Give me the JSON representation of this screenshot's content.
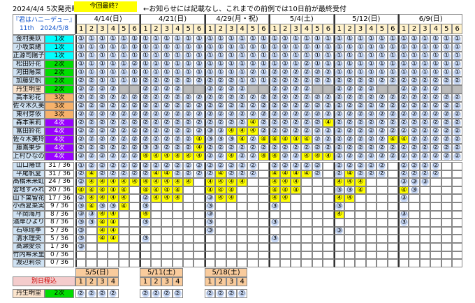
{
  "header": {
    "sale": "2024/4/4 5次発売時",
    "badge": "今回最終？",
    "note": "←お知らせには記載なし、これまでの前例では10日前が最終受付"
  },
  "event": {
    "title": "『君はハニーデュー』",
    "subtitle": "11th　2024/5/8"
  },
  "dates": [
    "4/14(日)",
    "4/21(日)",
    "4/29(月・祝)",
    "5/4(土)",
    "5/12(日)",
    "6/9(日)"
  ],
  "slots": [
    "1",
    "2",
    "3",
    "4",
    "5",
    "6"
  ],
  "members": [
    {
      "name": "金村美玖",
      "batch": "1次",
      "batch_color": "#00ffff",
      "cells": [
        "①",
        "①",
        "①",
        "①",
        "①",
        "①",
        "①",
        "①",
        "①",
        "①",
        "①",
        "①",
        "①",
        "①",
        "①",
        "①",
        "①",
        "①",
        "①",
        "①",
        "①",
        "①",
        "①",
        "①",
        "①",
        "①",
        "①",
        "①",
        "①",
        "①",
        "①",
        "①",
        "①",
        "①",
        "①",
        "①"
      ]
    },
    {
      "name": "小坂菜緒",
      "batch": "1次",
      "batch_color": "#00ffff",
      "cells": [
        "①",
        "①",
        "①",
        "①",
        "①",
        "①",
        "①",
        "①",
        "①",
        "①",
        "①",
        "①",
        "①",
        "①",
        "①",
        "①",
        "①",
        "①",
        "①",
        "①",
        "①",
        "①",
        "①",
        "①",
        "①",
        "①",
        "①",
        "①",
        "①",
        "①",
        "①",
        "①",
        "①",
        "①",
        "①",
        "①"
      ]
    },
    {
      "name": "正源司陽子",
      "batch": "1次",
      "batch_color": "#00ffff",
      "cells": [
        "①",
        "①",
        "①",
        "①",
        "①",
        "①",
        "①",
        "①",
        "①",
        "①",
        "①",
        "①",
        "①",
        "①",
        "①",
        "①",
        "①",
        "①",
        "①",
        "①",
        "①",
        "①",
        "①",
        "①",
        "①",
        "①",
        "①",
        "①",
        "①",
        "①",
        "①",
        "①",
        "①",
        "①",
        "①",
        "①"
      ]
    },
    {
      "name": "松田好花",
      "batch": "2次",
      "batch_color": "#00dd00",
      "cells": [
        "①",
        "①",
        "①",
        "①",
        "①",
        "②",
        "①",
        "①",
        "①",
        "①",
        "①",
        "①",
        "①",
        "①",
        "①",
        "①",
        "①",
        "①",
        "①",
        "①",
        "①",
        "②",
        "①",
        "①",
        "①",
        "①",
        "①",
        "①",
        "①",
        "①",
        "①",
        "①",
        "①",
        "①",
        "①",
        "①"
      ]
    },
    {
      "name": "河田陽菜",
      "batch": "2次",
      "batch_color": "#00dd00",
      "cells": [
        "①",
        "①",
        "①",
        "①",
        "①",
        "①",
        "①",
        "①",
        "①",
        "①",
        "①",
        "①",
        "①",
        "①",
        "①",
        "①",
        "②",
        "①",
        "②",
        "②",
        "②",
        "②",
        "②",
        "②",
        "①",
        "①",
        "①",
        "①",
        "①",
        "①",
        "①",
        "①",
        "①",
        "①",
        "①",
        "①"
      ]
    },
    {
      "name": "加藤史帆",
      "batch": "2次",
      "batch_color": "#00dd00",
      "cells": [
        "②",
        "②",
        "①",
        "①",
        "①",
        "①",
        "②",
        "②",
        "②",
        "②",
        "②",
        "②",
        "②",
        "②",
        "②",
        "①",
        "①",
        "①",
        "②",
        "②",
        "②",
        "②",
        "②",
        "②",
        "②",
        "②",
        "②",
        "②",
        "②",
        "②",
        "②",
        "②",
        "②",
        "②",
        "②",
        "②"
      ]
    },
    {
      "name": "丹生明里",
      "batch": "2次",
      "batch_color": "#00dd00",
      "name_color": "#fce5cd",
      "blocked": [
        4,
        5,
        10,
        11,
        16,
        17,
        22,
        23,
        28,
        29,
        34,
        35
      ],
      "cells": [
        "②",
        "②",
        "②",
        "②",
        null,
        null,
        "②",
        "②",
        "②",
        "②",
        null,
        null,
        "②",
        "②",
        "②",
        "②",
        null,
        null,
        "②",
        "②",
        "②",
        "②",
        null,
        null,
        "②",
        "②",
        "②",
        "②",
        null,
        null,
        "②",
        "②",
        "②",
        "②",
        null,
        null
      ]
    },
    {
      "name": "高本彩花",
      "batch": "3次",
      "batch_color": "#f6b26b",
      "cells": [
        "②",
        "②",
        "②",
        "②",
        "②",
        "②",
        "②",
        "②",
        "②",
        "②",
        "②",
        "②",
        "②",
        "②",
        "②",
        "②",
        "②",
        "②",
        "②",
        "②",
        "②",
        "②",
        "②",
        "②",
        "②",
        "②",
        "②",
        "②",
        "②",
        "②",
        "②",
        "②",
        "②",
        "②",
        "②",
        "②"
      ]
    },
    {
      "name": "佐々木久美",
      "batch": "3次",
      "batch_color": "#f6b26b",
      "cells": [
        "②",
        "②",
        "②",
        "②",
        "②",
        "②",
        "②",
        "②",
        "②",
        "②",
        "②",
        "②",
        "②",
        "②",
        "②",
        "②",
        "②",
        "②",
        "②",
        "②",
        "②",
        "②",
        "②",
        "②",
        "②",
        "②",
        "②",
        "②",
        "②",
        "②",
        "②",
        "②",
        "②",
        "②",
        "②",
        "②"
      ]
    },
    {
      "name": "東村芽依",
      "batch": "3次",
      "batch_color": "#f6b26b",
      "cells": [
        "②",
        "②",
        "②",
        "②",
        "②",
        "②",
        "②",
        "②",
        "②",
        "②",
        "②",
        "②",
        "②",
        "②",
        "②",
        "②",
        "②",
        "②",
        "②",
        "②",
        "②",
        "②",
        "②",
        "②",
        "②",
        "②",
        "②",
        "②",
        "②",
        "②",
        "②",
        "②",
        "②",
        "②",
        "②",
        "②"
      ]
    },
    {
      "name": "森本茉莉",
      "batch": "4次",
      "batch_color": "#9900ff",
      "cells": [
        "②",
        "②",
        "②",
        "②",
        "②",
        "②",
        "②",
        "②",
        "②",
        "②",
        "②",
        "②",
        "②",
        "②",
        "②",
        "②",
        "④",
        "②",
        "②",
        "②",
        "②",
        "②",
        "②",
        "④",
        "②",
        "②",
        "②",
        "②",
        "②",
        "②",
        "②",
        "②",
        "②",
        "②",
        "②",
        "②"
      ]
    },
    {
      "name": "富田鈴花",
      "batch": "4次",
      "batch_color": "#9900ff",
      "cells": [
        "②",
        "②",
        "②",
        "②",
        "②",
        "②",
        "②",
        "②",
        "②",
        "②",
        "②",
        "②",
        "③",
        "③",
        "④",
        "④",
        "④",
        "②",
        "②",
        "②",
        "②",
        "②",
        "②",
        "②",
        "②",
        "②",
        "②",
        "②",
        "②",
        "②",
        "②",
        "②",
        "②",
        "②",
        "②",
        "②"
      ]
    },
    {
      "name": "佐々木美玲",
      "batch": "4次",
      "batch_color": "#9900ff",
      "cells": [
        "②",
        "②",
        "②",
        "②",
        "②",
        "②",
        "②",
        "②",
        "②",
        "②",
        "②",
        "④",
        "③",
        "③",
        "③",
        "④",
        "②",
        "④",
        "④",
        "④",
        "④",
        "④",
        "②",
        "②",
        "②",
        "②",
        "②",
        "②",
        "②",
        "④",
        "④",
        "②",
        "②",
        "②",
        "②",
        "②"
      ]
    },
    {
      "name": "藤嶌果歩",
      "batch": "4次",
      "batch_color": "#9900ff",
      "cells": [
        "②",
        "②",
        "②",
        "②",
        "②",
        "②",
        "③",
        "③",
        "②",
        "②",
        "②",
        "④",
        "②",
        "②",
        "②",
        "②",
        "②",
        "②",
        "②",
        "②",
        "②",
        "②",
        "②",
        "②",
        "②",
        "②",
        "②",
        "②",
        "②",
        "②",
        "②",
        "②",
        "②",
        "②",
        "②",
        "②"
      ]
    },
    {
      "name": "上村ひなの",
      "batch": "4次",
      "batch_color": "#9900ff",
      "cells": [
        "②",
        "②",
        "②",
        "②",
        "②",
        "②",
        "④",
        "④",
        "④",
        "④",
        "④",
        "④",
        "②",
        "②",
        "④",
        "②",
        "②",
        "④",
        "④",
        "②",
        "②",
        "④",
        "④",
        "④",
        "②",
        "②",
        "②",
        "②",
        "②",
        "②",
        "②",
        "②",
        "②",
        "②",
        "②",
        "②"
      ]
    }
  ],
  "sales": [
    {
      "name": "山口陽世",
      "count": "31 / 36",
      "cells": [
        "①",
        "②",
        "②",
        "②",
        "②",
        "②",
        "②",
        "②",
        "②",
        "②",
        "②",
        "②",
        "②",
        "②",
        "②",
        "②",
        "②",
        null,
        "②",
        "②",
        "②",
        "②",
        "②",
        null,
        "②",
        "②",
        "②",
        "②",
        "②",
        null,
        "②",
        "②",
        "②",
        "②",
        null,
        null
      ]
    },
    {
      "name": "平尾帆夏",
      "count": "31 / 36",
      "cells": [
        "②",
        "④",
        "②",
        "②",
        "②",
        "②",
        "②",
        "④",
        "④",
        "②",
        "②",
        "②",
        "②",
        "④",
        "②",
        "②",
        "②",
        null,
        "④",
        "④",
        "④",
        "④",
        "②",
        null,
        "②",
        "④",
        "②",
        "②",
        "②",
        null,
        "②",
        "②",
        "②",
        "②",
        null,
        null
      ]
    },
    {
      "name": "髙橋未来虹",
      "count": "24 / 36",
      "cells": [
        "②",
        "④",
        "④",
        "④",
        "④",
        "④",
        "④",
        "④",
        "④",
        "④",
        "④",
        null,
        "④",
        "④",
        "④",
        "④",
        null,
        null,
        "④",
        "④",
        "④",
        null,
        null,
        null,
        "④",
        "④",
        "④",
        null,
        null,
        null,
        "③",
        "③",
        "③",
        null,
        null,
        null
      ]
    },
    {
      "name": "宮地すみれ",
      "count": "20 / 36",
      "cells": [
        "④",
        "④",
        "④",
        "④",
        "④",
        null,
        "④",
        "④",
        "④",
        "④",
        null,
        null,
        "④",
        "④",
        "④",
        null,
        null,
        null,
        "④",
        "④",
        "④",
        null,
        null,
        null,
        "③",
        "③",
        "④",
        null,
        null,
        null,
        "④",
        "③",
        null,
        null,
        null,
        null
      ]
    },
    {
      "name": "山下葉留花",
      "count": "17 / 36",
      "cells": [
        "②",
        "④",
        "④",
        "④",
        "④",
        null,
        "②",
        "④",
        "④",
        "④",
        null,
        null,
        "③",
        "④",
        "④",
        null,
        null,
        null,
        "④",
        "④",
        null,
        null,
        null,
        null,
        "④",
        "④",
        null,
        null,
        null,
        null,
        "③",
        null,
        null,
        null,
        null,
        null
      ]
    },
    {
      "name": "小西夏菜実",
      "count": "9 / 36",
      "cells": [
        "③",
        "④",
        "③",
        "③",
        "④",
        null,
        "③",
        null,
        null,
        null,
        null,
        null,
        "③",
        null,
        null,
        null,
        null,
        null,
        "③",
        null,
        null,
        null,
        null,
        null,
        "③",
        null,
        null,
        null,
        null,
        null,
        null,
        null,
        null,
        null,
        null,
        null
      ]
    },
    {
      "name": "平岡海月",
      "count": "8 / 36",
      "cells": [
        "③",
        "③",
        "④",
        "④",
        null,
        null,
        "④",
        null,
        null,
        null,
        null,
        null,
        "③",
        null,
        null,
        null,
        null,
        null,
        null,
        null,
        null,
        null,
        null,
        null,
        "④",
        null,
        null,
        null,
        null,
        null,
        "③",
        null,
        null,
        null,
        null,
        null
      ]
    },
    {
      "name": "濱岸ひより",
      "count": "8 / 36",
      "cells": [
        "③",
        "③",
        "④",
        "④",
        null,
        null,
        "③",
        null,
        null,
        null,
        null,
        null,
        "③",
        null,
        null,
        null,
        null,
        null,
        "③",
        null,
        null,
        null,
        null,
        null,
        null,
        null,
        null,
        null,
        null,
        null,
        "③",
        null,
        null,
        null,
        null,
        null
      ]
    },
    {
      "name": "石塚瑶季",
      "count": "5 / 36",
      "cells": [
        "③",
        null,
        "④",
        "④",
        null,
        null,
        null,
        null,
        null,
        null,
        null,
        null,
        "③",
        null,
        null,
        null,
        null,
        null,
        null,
        null,
        null,
        null,
        null,
        null,
        "③",
        null,
        null,
        null,
        null,
        null,
        null,
        null,
        null,
        null,
        null,
        null
      ]
    },
    {
      "name": "清水理央",
      "count": "5 / 36",
      "cells": [
        "③",
        null,
        "④",
        "④",
        null,
        null,
        "③",
        null,
        null,
        null,
        null,
        null,
        null,
        null,
        null,
        null,
        null,
        null,
        "③",
        null,
        null,
        null,
        null,
        null,
        null,
        null,
        null,
        null,
        null,
        null,
        null,
        null,
        null,
        null,
        null,
        null
      ]
    },
    {
      "name": "髙瀬愛奈",
      "count": "1 / 36",
      "cells": [
        "③",
        null,
        null,
        null,
        null,
        null,
        null,
        null,
        null,
        null,
        null,
        null,
        null,
        null,
        null,
        null,
        null,
        null,
        null,
        null,
        null,
        null,
        null,
        null,
        null,
        null,
        null,
        null,
        null,
        null,
        null,
        null,
        null,
        null,
        null,
        null
      ]
    },
    {
      "name": "竹内希来里",
      "count": "0 / 36",
      "cells": [
        null,
        null,
        null,
        null,
        null,
        null,
        null,
        null,
        null,
        null,
        null,
        null,
        null,
        null,
        null,
        null,
        null,
        null,
        null,
        null,
        null,
        null,
        null,
        null,
        null,
        null,
        null,
        null,
        null,
        null,
        null,
        null,
        null,
        null,
        null,
        null
      ]
    },
    {
      "name": "渡辺莉奈",
      "count": "0 / 36",
      "cells": [
        null,
        null,
        null,
        null,
        null,
        null,
        null,
        null,
        null,
        null,
        null,
        null,
        null,
        null,
        null,
        null,
        null,
        null,
        null,
        null,
        null,
        null,
        null,
        null,
        null,
        null,
        null,
        null,
        null,
        null,
        null,
        null,
        null,
        null,
        null,
        null
      ]
    }
  ],
  "extra": {
    "label": "別日程込",
    "dates": [
      "5/5(日)",
      "5/11(土)",
      "5/18(土)"
    ],
    "slots": [
      "1",
      "2",
      "3",
      "4"
    ],
    "member": {
      "name": "丹生明里",
      "batch": "2次",
      "batch_color": "#00dd00",
      "name_color": "#fce5cd",
      "cells": [
        "②",
        "②",
        "②",
        "②",
        "②",
        "②",
        "②",
        "②",
        "②",
        "②",
        "②",
        "②"
      ]
    }
  }
}
